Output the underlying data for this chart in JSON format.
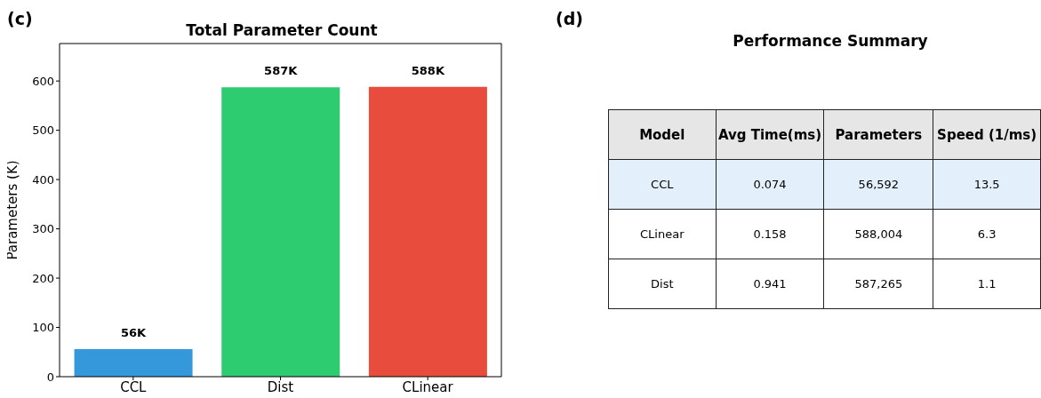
{
  "chart_data": [
    {
      "type": "bar",
      "title": "Total Parameter Count",
      "ylabel": "Parameters (K)",
      "annotations": [
        "(c)"
      ],
      "categories": [
        "CCL",
        "Dist",
        "CLinear"
      ],
      "values": [
        56,
        587,
        588
      ],
      "colors": [
        "#3498db",
        "#2ecc71",
        "#e74c3c"
      ],
      "value_labels": [
        "56K",
        "587K",
        "588K"
      ],
      "ylim": [
        0,
        676
      ],
      "yticks": [
        0,
        100,
        200,
        300,
        400,
        500,
        600
      ],
      "grid": false
    },
    {
      "type": "other",
      "title": "Performance Summary",
      "annotations": [
        "(d)"
      ],
      "categories": [
        "Model",
        "Avg Time(ms)",
        "Parameters",
        "Speed (1/ms)"
      ],
      "cell_labels": [
        [
          "CCL",
          "0.074",
          "56,592",
          "13.5"
        ],
        [
          "CLinear",
          "0.158",
          "588,004",
          "6.3"
        ],
        [
          "Dist",
          "0.941",
          "587,265",
          "1.1"
        ]
      ]
    }
  ]
}
